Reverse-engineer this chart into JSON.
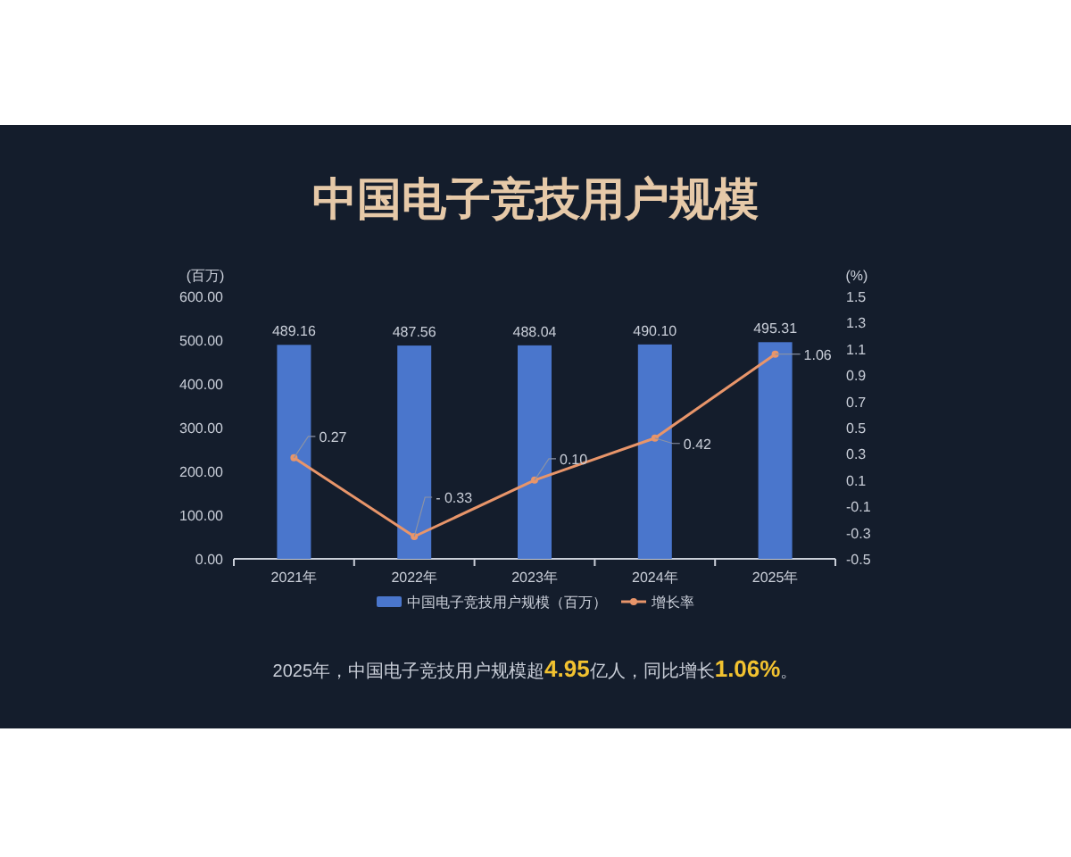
{
  "chart_data": {
    "type": "bar",
    "title": "中国电子竞技用户规模",
    "ylabel": "(百万)",
    "y2label": "(%)",
    "categories": [
      "2021年",
      "2022年",
      "2023年",
      "2024年",
      "2025年"
    ],
    "series": [
      {
        "name": "中国电子竞技用户规模（百万）",
        "color": "#4a76cc",
        "values": [
          489.16,
          487.56,
          488.04,
          490.1,
          495.31
        ],
        "value_labels": [
          "489.16",
          "487.56",
          "488.04",
          "490.10",
          "495.31"
        ]
      },
      {
        "name": "增长率",
        "type": "line",
        "axis": "y2",
        "color": "#e8956a",
        "values": [
          0.27,
          -0.33,
          0.1,
          0.42,
          1.06
        ],
        "value_labels": [
          "0.27",
          "- 0.33",
          "0.10",
          "0.42",
          "1.06"
        ]
      }
    ],
    "ylim": [
      0,
      600
    ],
    "yticks": [
      {
        "value": 0,
        "label": "0.00"
      },
      {
        "value": 100,
        "label": "100.00"
      },
      {
        "value": 200,
        "label": "200.00"
      },
      {
        "value": 300,
        "label": "300.00"
      },
      {
        "value": 400,
        "label": "400.00"
      },
      {
        "value": 500,
        "label": "500.00"
      },
      {
        "value": 600,
        "label": "600.00"
      }
    ],
    "y2lim": [
      -0.5,
      1.5
    ],
    "y2ticks": [
      -0.5,
      -0.3,
      -0.1,
      0.1,
      0.3,
      0.5,
      0.7,
      0.9,
      1.1,
      1.3,
      1.5
    ],
    "legend": "bottom",
    "marker": "circle",
    "grid": false,
    "annotations": [
      "2025年，中国电子竞技用户规模超4.95亿人，同比增长1.06%。"
    ]
  }
}
